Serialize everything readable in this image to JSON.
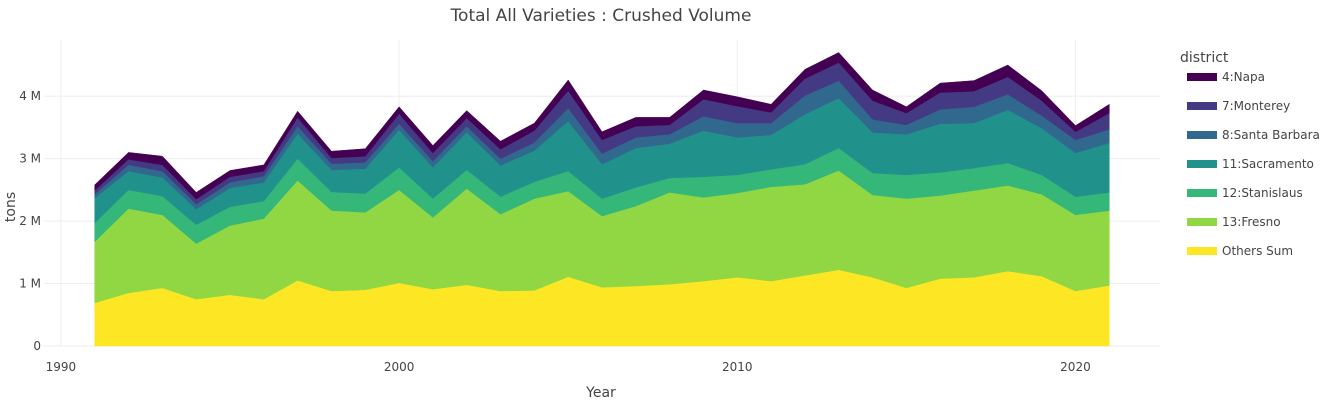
{
  "chart_data": {
    "type": "area",
    "stacked": true,
    "title": "Total All Varieties : Crushed Volume",
    "xlabel": "Year",
    "ylabel": "tons",
    "xlim": [
      1989.5,
      2022.5
    ],
    "ylim": [
      0,
      4900000
    ],
    "x_ticks": [
      1990,
      2000,
      2010,
      2020
    ],
    "y_ticks": [
      0,
      1000000,
      2000000,
      3000000,
      4000000
    ],
    "y_tick_labels": [
      "0",
      "1 M",
      "2 M",
      "3 M",
      "4 M"
    ],
    "legend_title": "district",
    "legend_position": "right",
    "x": [
      1991,
      1992,
      1993,
      1994,
      1995,
      1996,
      1997,
      1998,
      1999,
      2000,
      2001,
      2002,
      2003,
      2004,
      2005,
      2006,
      2007,
      2008,
      2009,
      2010,
      2011,
      2012,
      2013,
      2014,
      2015,
      2016,
      2017,
      2018,
      2019,
      2020,
      2021
    ],
    "series": [
      {
        "name": "Others Sum",
        "color": "#fde725",
        "values": [
          690000,
          850000,
          930000,
          750000,
          820000,
          750000,
          1050000,
          880000,
          900000,
          1010000,
          910000,
          980000,
          880000,
          890000,
          1110000,
          940000,
          960000,
          990000,
          1040000,
          1100000,
          1040000,
          1130000,
          1220000,
          1100000,
          930000,
          1080000,
          1100000,
          1200000,
          1120000,
          880000,
          970000
        ]
      },
      {
        "name": "13:Fresno",
        "color": "#90d743",
        "values": [
          980000,
          1350000,
          1170000,
          890000,
          1110000,
          1290000,
          1600000,
          1290000,
          1240000,
          1490000,
          1150000,
          1540000,
          1230000,
          1470000,
          1370000,
          1140000,
          1280000,
          1470000,
          1340000,
          1350000,
          1510000,
          1460000,
          1590000,
          1320000,
          1430000,
          1330000,
          1390000,
          1370000,
          1310000,
          1220000,
          1200000
        ]
      },
      {
        "name": "12:Stanislaus",
        "color": "#35b779",
        "values": [
          300000,
          300000,
          300000,
          300000,
          300000,
          280000,
          350000,
          300000,
          300000,
          360000,
          300000,
          300000,
          280000,
          270000,
          320000,
          280000,
          300000,
          230000,
          330000,
          290000,
          280000,
          320000,
          360000,
          350000,
          380000,
          370000,
          360000,
          360000,
          310000,
          290000,
          290000
        ]
      },
      {
        "name": "11:Sacramento",
        "color": "#21918c",
        "values": [
          400000,
          300000,
          300000,
          250000,
          300000,
          300000,
          400000,
          350000,
          400000,
          600000,
          500000,
          600000,
          500000,
          500000,
          800000,
          550000,
          630000,
          550000,
          740000,
          600000,
          550000,
          800000,
          800000,
          650000,
          650000,
          780000,
          720000,
          850000,
          750000,
          700000,
          790000
        ]
      },
      {
        "name": "8:Santa Barbara",
        "color": "#31688e",
        "values": [
          60000,
          100000,
          100000,
          80000,
          90000,
          100000,
          120000,
          100000,
          100000,
          100000,
          100000,
          100000,
          110000,
          130000,
          210000,
          170000,
          170000,
          150000,
          230000,
          230000,
          190000,
          300000,
          280000,
          210000,
          150000,
          230000,
          260000,
          250000,
          200000,
          210000,
          220000
        ]
      },
      {
        "name": "7:Monterey",
        "color": "#443983",
        "values": [
          60000,
          90000,
          100000,
          80000,
          90000,
          80000,
          140000,
          90000,
          100000,
          160000,
          130000,
          130000,
          150000,
          190000,
          280000,
          220000,
          180000,
          150000,
          270000,
          270000,
          170000,
          270000,
          290000,
          300000,
          190000,
          270000,
          250000,
          280000,
          240000,
          130000,
          260000
        ]
      },
      {
        "name": "4:Napa",
        "color": "#440154",
        "values": [
          90000,
          110000,
          140000,
          110000,
          100000,
          100000,
          100000,
          110000,
          120000,
          110000,
          120000,
          120000,
          130000,
          120000,
          170000,
          130000,
          140000,
          120000,
          150000,
          150000,
          130000,
          150000,
          160000,
          170000,
          100000,
          150000,
          170000,
          190000,
          160000,
          100000,
          140000
        ]
      }
    ]
  }
}
